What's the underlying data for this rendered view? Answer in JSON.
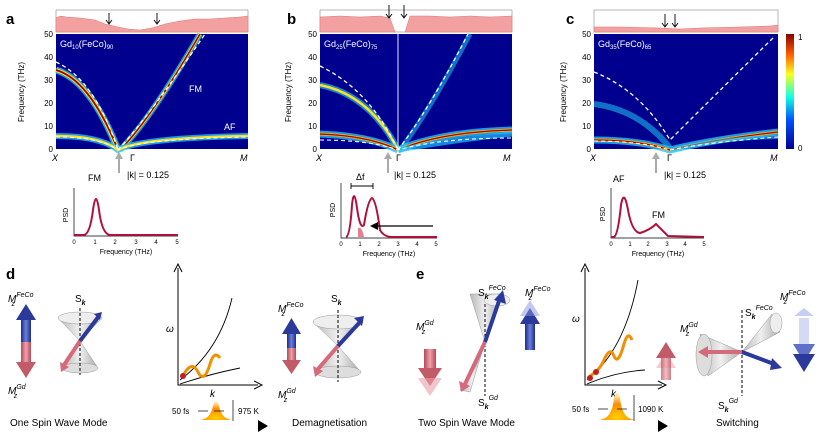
{
  "panels": {
    "a": {
      "letter": "a",
      "label": "Gd",
      "sub1": "10",
      "mid": "(FeCo)",
      "sub2": "90",
      "branch_upper": "FM",
      "branch_lower": "AF",
      "k_label": "|k| = 0.125",
      "psd_peak": "FM"
    },
    "b": {
      "letter": "b",
      "label": "Gd",
      "sub1": "25",
      "mid": "(FeCo)",
      "sub2": "75",
      "k_label": "|k| = 0.125",
      "delta_f": "Δf"
    },
    "c": {
      "letter": "c",
      "label": "Gd",
      "sub1": "35",
      "mid": "(FeCo)",
      "sub2": "65",
      "k_label": "|k| = 0.125",
      "psd_peak_left": "AF",
      "psd_peak_right": "FM"
    }
  },
  "common": {
    "y_axis_label": "Frequency (THz)",
    "y_ticks": [
      "0",
      "10",
      "20",
      "30",
      "40",
      "50"
    ],
    "x_ticks": [
      "X",
      "Γ",
      "M"
    ],
    "psd_ylabel": "PSD",
    "psd_xlabel": "Frequency (THz)",
    "psd_xticks": [
      "0",
      "1",
      "2",
      "3",
      "4",
      "5"
    ],
    "colorbar_ticks": [
      "1",
      "0"
    ]
  },
  "lower": {
    "d": {
      "letter": "d",
      "caption_left": "One Spin Wave Mode",
      "caption_right": "Demagnetisation",
      "pulse": "50 fs",
      "temp": "975 K"
    },
    "e": {
      "letter": "e",
      "caption_left": "Two Spin Wave Mode",
      "caption_right": "Switching",
      "pulse": "50 fs",
      "temp": "1090 K"
    },
    "labels": {
      "m_fe": "M",
      "fe_sup": "FeCo",
      "z": "z",
      "gd_sup": "Gd",
      "sk": "S",
      "sk_sub": "k",
      "omega": "ω",
      "kaxis": "k"
    }
  },
  "colors": {
    "bg": "#00008f",
    "red": "#b0103a",
    "blue": "#2b3a9a",
    "pink": "#e07a86",
    "spectrum": "#f3a0a0"
  }
}
